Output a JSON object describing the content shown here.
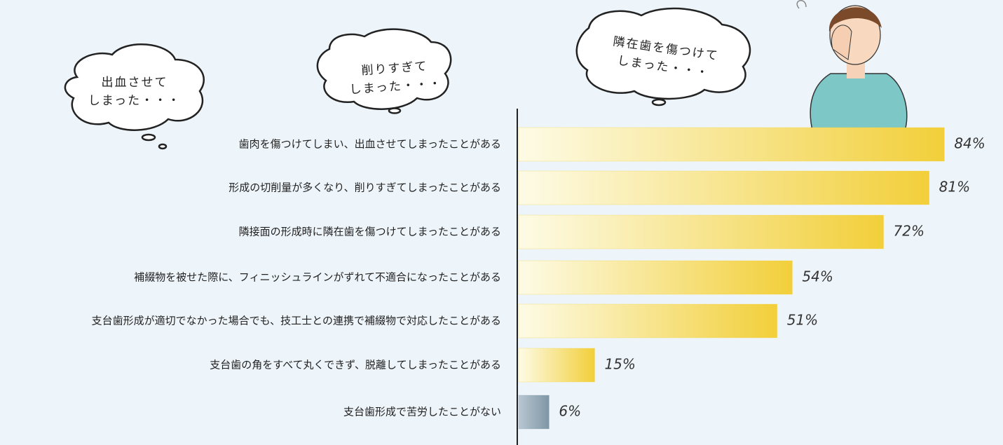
{
  "chart_data": {
    "type": "bar",
    "orientation": "horizontal",
    "categories": [
      "歯肉を傷つけてしまい、出血させてしまったことがある",
      "形成の切削量が多くなり、削りすぎてしまったことがある",
      "隣接面の形成時に隣在歯を傷つけてしまったことがある",
      "補綴物を被せた際に、フィニッシュラインがずれて不適合になったことがある",
      "支台歯形成が適切でなかった場合でも、技工士との連携で補綴物で対応したことがある",
      "支台歯の角をすべて丸くできず、脱離してしまったことがある",
      "支台歯形成で苦労したことがない"
    ],
    "values": [
      84,
      81,
      72,
      54,
      51,
      15,
      6
    ],
    "value_labels": [
      "84%",
      "81%",
      "72%",
      "54%",
      "51%",
      "15%",
      "6%"
    ],
    "colors": [
      "#f2cf3a",
      "#f2cf3a",
      "#f2cf3a",
      "#f2cf3a",
      "#f2cf3a",
      "#f2cf3a",
      "#8fa4b3"
    ],
    "annotations": [
      {
        "lines": [
          "出血させて",
          "しまった・・・"
        ]
      },
      {
        "lines": [
          "削りすぎて",
          "しまった・・・"
        ]
      },
      {
        "lines": [
          "隣在歯を傷つけて",
          "しまった・・・"
        ]
      }
    ]
  }
}
